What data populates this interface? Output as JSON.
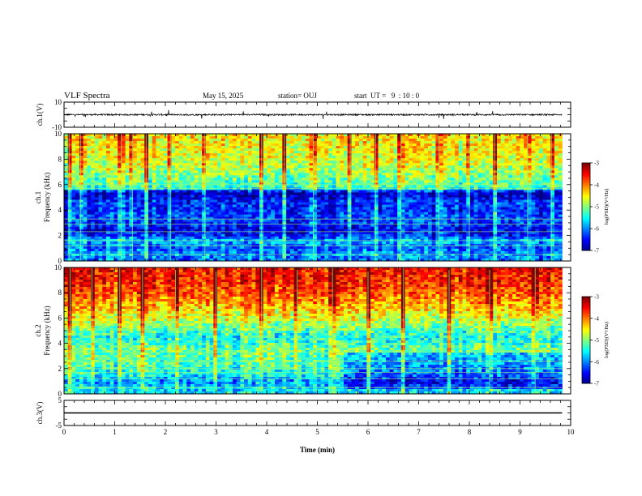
{
  "header": {
    "title": "VLF Spectra",
    "date": "May 15, 2025",
    "station": "station= OUJ",
    "start": "start  UT =   9  : 10 : 0"
  },
  "chart_data": [
    {
      "type": "line",
      "panel": "ch1-waveform",
      "ylabel": "ch.1(V)",
      "ylim": [
        -10,
        10
      ],
      "yticks": [
        10,
        -10
      ],
      "xlim": [
        0,
        10
      ],
      "baseline": 0,
      "noise_amplitude": 1,
      "xmax_data": 9.83
    },
    {
      "type": "heatmap",
      "panel": "ch1-spectrogram",
      "ylabel_top": "ch.1",
      "ylabel": "Frequency  (kHz)",
      "ylim": [
        0,
        10
      ],
      "yticks": [
        0,
        2,
        4,
        6,
        8,
        10
      ],
      "xlim": [
        0,
        10
      ],
      "xmax_data": 9.83,
      "colorbar": {
        "label": "log(PSD)(V²/Hz)",
        "ticks": [
          -3,
          -4,
          -5,
          -6,
          -7
        ],
        "range": [
          -7,
          -3
        ]
      },
      "profile": [
        {
          "f": 0.0,
          "v": -6.1
        },
        {
          "f": 0.5,
          "v": -5.9
        },
        {
          "f": 1.0,
          "v": -6.2
        },
        {
          "f": 1.6,
          "v": -5.8
        },
        {
          "f": 2.0,
          "v": -6.4
        },
        {
          "f": 2.5,
          "v": -6.6
        },
        {
          "f": 3.0,
          "v": -6.3
        },
        {
          "f": 3.5,
          "v": -6.2
        },
        {
          "f": 4.0,
          "v": -6.4
        },
        {
          "f": 4.6,
          "v": -6.3
        },
        {
          "f": 5.0,
          "v": -6.6
        },
        {
          "f": 5.4,
          "v": -6.8
        },
        {
          "f": 5.7,
          "v": -5.4
        },
        {
          "f": 6.0,
          "v": -5.2
        },
        {
          "f": 7.0,
          "v": -4.9
        },
        {
          "f": 8.0,
          "v": -4.6
        },
        {
          "f": 9.0,
          "v": -4.5
        },
        {
          "f": 10.0,
          "v": -4.4
        }
      ],
      "lines_khz": [
        0.5,
        1.2,
        1.6,
        2.3,
        2.9,
        3.3,
        5.7,
        6.0
      ],
      "spikes_min": [
        0.1,
        0.33,
        1.13,
        1.35,
        1.62,
        2.1,
        2.78,
        3.9,
        4.35,
        4.92,
        5.65,
        6.15,
        6.65,
        7.4,
        8.0,
        8.5,
        9.15,
        9.62
      ]
    },
    {
      "type": "heatmap",
      "panel": "ch2-spectrogram",
      "ylabel_top": "ch.2",
      "ylabel": "Frequency  (kHz)",
      "ylim": [
        0,
        10
      ],
      "yticks": [
        0,
        2,
        4,
        6,
        8,
        10
      ],
      "xlim": [
        0,
        10
      ],
      "xmax_data": 9.83,
      "colorbar": {
        "label": "log(PSD)(V²/Hz)",
        "ticks": [
          -3,
          -4,
          -5,
          -6,
          -7
        ],
        "range": [
          -7,
          -3
        ]
      },
      "profile": [
        {
          "f": 0.0,
          "v": -5.6
        },
        {
          "f": 0.5,
          "v": -5.6
        },
        {
          "f": 1.0,
          "v": -5.9
        },
        {
          "f": 1.5,
          "v": -5.5
        },
        {
          "f": 2.0,
          "v": -5.3
        },
        {
          "f": 2.5,
          "v": -5.2
        },
        {
          "f": 3.0,
          "v": -5.1
        },
        {
          "f": 3.5,
          "v": -5.0
        },
        {
          "f": 4.0,
          "v": -5.3
        },
        {
          "f": 4.5,
          "v": -5.4
        },
        {
          "f": 5.0,
          "v": -5.2
        },
        {
          "f": 6.0,
          "v": -4.6
        },
        {
          "f": 7.0,
          "v": -4.2
        },
        {
          "f": 8.0,
          "v": -3.8
        },
        {
          "f": 9.0,
          "v": -3.6
        },
        {
          "f": 10.0,
          "v": -3.5
        }
      ],
      "lines_khz": [
        0.5,
        1.2,
        1.7,
        2.0,
        2.6,
        3.3
      ],
      "spikes_min": [
        0.12,
        0.55,
        1.1,
        1.55,
        2.2,
        3.0,
        3.9,
        4.6,
        5.3,
        6.0,
        6.7,
        7.6,
        8.4,
        9.3
      ]
    },
    {
      "type": "line",
      "panel": "ch3-waveform",
      "ylabel": "ch.3(V)",
      "ylim": [
        -5,
        5
      ],
      "yticks": [
        5,
        -5
      ],
      "xlim": [
        0,
        10
      ],
      "baseline": 0,
      "noise_amplitude": 0,
      "xmax_data": 9.83,
      "xlabel": "Time  (min)",
      "xticks": [
        0,
        1,
        2,
        3,
        4,
        5,
        6,
        7,
        8,
        9,
        10
      ]
    }
  ]
}
